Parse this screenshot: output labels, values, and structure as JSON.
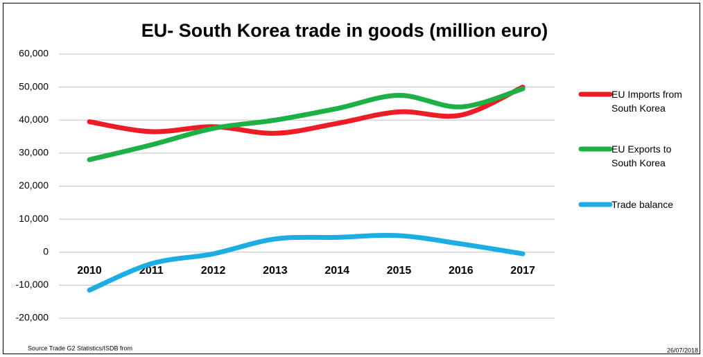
{
  "chart_data": {
    "type": "line",
    "title": "EU- South Korea trade in goods (million euro)",
    "categories": [
      "2010",
      "2011",
      "2012",
      "2013",
      "2014",
      "2015",
      "2016",
      "2017"
    ],
    "series": [
      {
        "name": "EU Imports from South Korea",
        "color": "#ee1c25",
        "values": [
          39500,
          36500,
          38000,
          36000,
          39000,
          42500,
          41500,
          50000
        ]
      },
      {
        "name": "EU Exports to South Korea",
        "color": "#1db044",
        "values": [
          28000,
          32500,
          37500,
          40000,
          43500,
          47500,
          44000,
          49500
        ]
      },
      {
        "name": "Trade balance",
        "color": "#1cade4",
        "values": [
          -11500,
          -3500,
          -500,
          4000,
          4500,
          5000,
          2500,
          -500
        ]
      }
    ],
    "ylim": [
      -20000,
      60000
    ],
    "yticks": [
      {
        "value": -20000,
        "label": "-20,000"
      },
      {
        "value": -10000,
        "label": "-10,000"
      },
      0,
      {
        "value": 10000,
        "label": "10,000"
      },
      {
        "value": 20000,
        "label": "20,000"
      },
      {
        "value": 30000,
        "label": "30,000"
      },
      {
        "value": 40000,
        "label": "40,000"
      },
      {
        "value": 50000,
        "label": "50,000"
      },
      {
        "value": 60000,
        "label": "60,000"
      }
    ],
    "grid": true,
    "legend": "right",
    "source": "Source Trade G2 Statistics/ISDB from",
    "date": "26/07/2018"
  }
}
